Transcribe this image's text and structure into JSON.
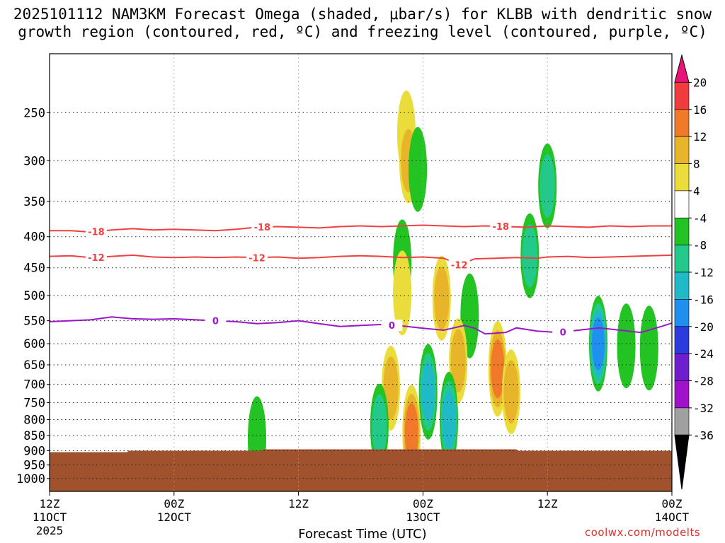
{
  "title_line1": "2025101112 NAM3KM Forecast Omega (shaded, μbar/s) for KLBB with dendritic snow",
  "title_line2": "growth region (contoured, red, ºC) and freezing level (contoured, purple, ºC)",
  "credit": "coolwx.com/modelts",
  "chart_data": {
    "type": "heatmap",
    "title": "2025101112 NAM3KM Forecast Omega (shaded, μbar/s) for KLBB with dendritic snow growth region (contoured, red, ºC) and freezing level (contoured, purple, ºC)",
    "xlabel": "Forecast Time (UTC)",
    "ylabel": "",
    "x_range_hours": [
      0,
      60
    ],
    "y_range_hPa": [
      1050,
      200
    ],
    "y_scale": "log-pressure",
    "grid": true,
    "x_ticks": [
      {
        "hour": 0,
        "label": "12Z",
        "sub": "11OCT",
        "sub2": "2025"
      },
      {
        "hour": 12,
        "label": "00Z",
        "sub": "12OCT"
      },
      {
        "hour": 24,
        "label": "12Z",
        "sub": ""
      },
      {
        "hour": 36,
        "label": "00Z",
        "sub": "13OCT"
      },
      {
        "hour": 48,
        "label": "12Z",
        "sub": ""
      },
      {
        "hour": 60,
        "label": "00Z",
        "sub": "14OCT"
      }
    ],
    "y_ticks": [
      250,
      300,
      350,
      400,
      450,
      500,
      550,
      600,
      650,
      700,
      750,
      800,
      850,
      900,
      950,
      1000
    ],
    "colorbar": {
      "labels": [
        "20",
        "16",
        "12",
        "8",
        "4",
        "-4",
        "-8",
        "-12",
        "-16",
        "-20",
        "-24",
        "-28",
        "-32",
        "-36"
      ],
      "colors": [
        "#e8147a",
        "#f03c3c",
        "#f07a2a",
        "#e8b42a",
        "#eadc3a",
        "#ffffff",
        "#22c322",
        "#22c98a",
        "#20b9c7",
        "#1f8ff0",
        "#2b3be0",
        "#6f1ecf",
        "#a011c9",
        "#a0a0a0",
        "#000000"
      ]
    },
    "contours": [
      {
        "name": "-18",
        "color": "#f04040",
        "labels": [
          {
            "hour": 4.5,
            "text": "-18"
          },
          {
            "hour": 20.5,
            "text": "-18"
          },
          {
            "hour": 43.5,
            "text": "-18"
          }
        ],
        "points": [
          [
            0,
            391
          ],
          [
            2,
            391
          ],
          [
            4,
            393
          ],
          [
            6,
            390
          ],
          [
            8,
            388
          ],
          [
            10,
            390
          ],
          [
            12,
            389
          ],
          [
            14,
            390
          ],
          [
            16,
            391
          ],
          [
            18,
            389
          ],
          [
            20,
            386
          ],
          [
            22,
            385
          ],
          [
            24,
            386
          ],
          [
            26,
            387
          ],
          [
            28,
            385
          ],
          [
            30,
            384
          ],
          [
            32,
            385
          ],
          [
            34,
            384
          ],
          [
            36,
            383
          ],
          [
            38,
            384
          ],
          [
            40,
            385
          ],
          [
            42,
            384
          ],
          [
            44,
            385
          ],
          [
            46,
            386
          ],
          [
            48,
            384
          ],
          [
            50,
            385
          ],
          [
            52,
            386
          ],
          [
            54,
            384
          ],
          [
            56,
            385
          ],
          [
            58,
            384
          ],
          [
            60,
            384
          ]
        ]
      },
      {
        "name": "-12",
        "color": "#f04040",
        "labels": [
          {
            "hour": 4.5,
            "text": "-12"
          },
          {
            "hour": 20,
            "text": "-12"
          },
          {
            "hour": 39.5,
            "text": "-12"
          }
        ],
        "points": [
          [
            0,
            431
          ],
          [
            2,
            430
          ],
          [
            4,
            433
          ],
          [
            6,
            431
          ],
          [
            8,
            429
          ],
          [
            10,
            432
          ],
          [
            12,
            433
          ],
          [
            14,
            432
          ],
          [
            16,
            433
          ],
          [
            18,
            432
          ],
          [
            20,
            433
          ],
          [
            22,
            432
          ],
          [
            24,
            434
          ],
          [
            26,
            433
          ],
          [
            28,
            431
          ],
          [
            30,
            430
          ],
          [
            32,
            431
          ],
          [
            34,
            433
          ],
          [
            36,
            432
          ],
          [
            38,
            434
          ],
          [
            39.5,
            445
          ],
          [
            41,
            435
          ],
          [
            43,
            434
          ],
          [
            45,
            433
          ],
          [
            47,
            434
          ],
          [
            48,
            432
          ],
          [
            50,
            431
          ],
          [
            52,
            433
          ],
          [
            54,
            432
          ],
          [
            56,
            431
          ],
          [
            58,
            430
          ],
          [
            60,
            429
          ]
        ]
      },
      {
        "name": "0",
        "color": "#9a16c8",
        "labels": [
          {
            "hour": 16,
            "text": "0"
          },
          {
            "hour": 33,
            "text": "0"
          },
          {
            "hour": 49.5,
            "text": "0"
          }
        ],
        "points": [
          [
            0,
            552
          ],
          [
            2,
            550
          ],
          [
            4,
            548
          ],
          [
            6,
            542
          ],
          [
            8,
            546
          ],
          [
            10,
            547
          ],
          [
            12,
            546
          ],
          [
            14,
            548
          ],
          [
            16,
            550
          ],
          [
            18,
            552
          ],
          [
            20,
            556
          ],
          [
            22,
            554
          ],
          [
            24,
            550
          ],
          [
            26,
            556
          ],
          [
            28,
            562
          ],
          [
            30,
            560
          ],
          [
            32,
            558
          ],
          [
            34,
            561
          ],
          [
            36,
            566
          ],
          [
            38,
            570
          ],
          [
            40,
            560
          ],
          [
            41,
            566
          ],
          [
            42,
            578
          ],
          [
            44,
            575
          ],
          [
            45,
            565
          ],
          [
            47,
            572
          ],
          [
            49,
            575
          ],
          [
            51,
            570
          ],
          [
            53,
            565
          ],
          [
            55,
            570
          ],
          [
            57,
            575
          ],
          [
            59,
            562
          ],
          [
            60,
            555
          ]
        ]
      }
    ],
    "terrain_color": "#a0522d",
    "omega_cells": [
      {
        "hour": 34.4,
        "p": 270,
        "value": 6
      },
      {
        "hour": 34.6,
        "p": 300,
        "value": 10
      },
      {
        "hour": 35.5,
        "p": 310,
        "value": -5
      },
      {
        "hour": 48.0,
        "p": 330,
        "value": -10
      },
      {
        "hour": 46.3,
        "p": 430,
        "value": -8
      },
      {
        "hour": 34.0,
        "p": 440,
        "value": -6
      },
      {
        "hour": 34.0,
        "p": 495,
        "value": 6
      },
      {
        "hour": 37.8,
        "p": 505,
        "value": 8
      },
      {
        "hour": 40.5,
        "p": 540,
        "value": -6
      },
      {
        "hour": 52.9,
        "p": 600,
        "value": -18
      },
      {
        "hour": 55.6,
        "p": 605,
        "value": -6
      },
      {
        "hour": 57.8,
        "p": 610,
        "value": -6
      },
      {
        "hour": 43.2,
        "p": 660,
        "value": 12
      },
      {
        "hour": 39.4,
        "p": 640,
        "value": 10
      },
      {
        "hour": 32.9,
        "p": 710,
        "value": 8
      },
      {
        "hour": 31.8,
        "p": 820,
        "value": -10
      },
      {
        "hour": 36.5,
        "p": 720,
        "value": -12
      },
      {
        "hour": 34.9,
        "p": 840,
        "value": 12
      },
      {
        "hour": 38.5,
        "p": 800,
        "value": -12
      },
      {
        "hour": 44.5,
        "p": 720,
        "value": 8
      },
      {
        "hour": 20.0,
        "p": 860,
        "value": -6
      }
    ]
  }
}
